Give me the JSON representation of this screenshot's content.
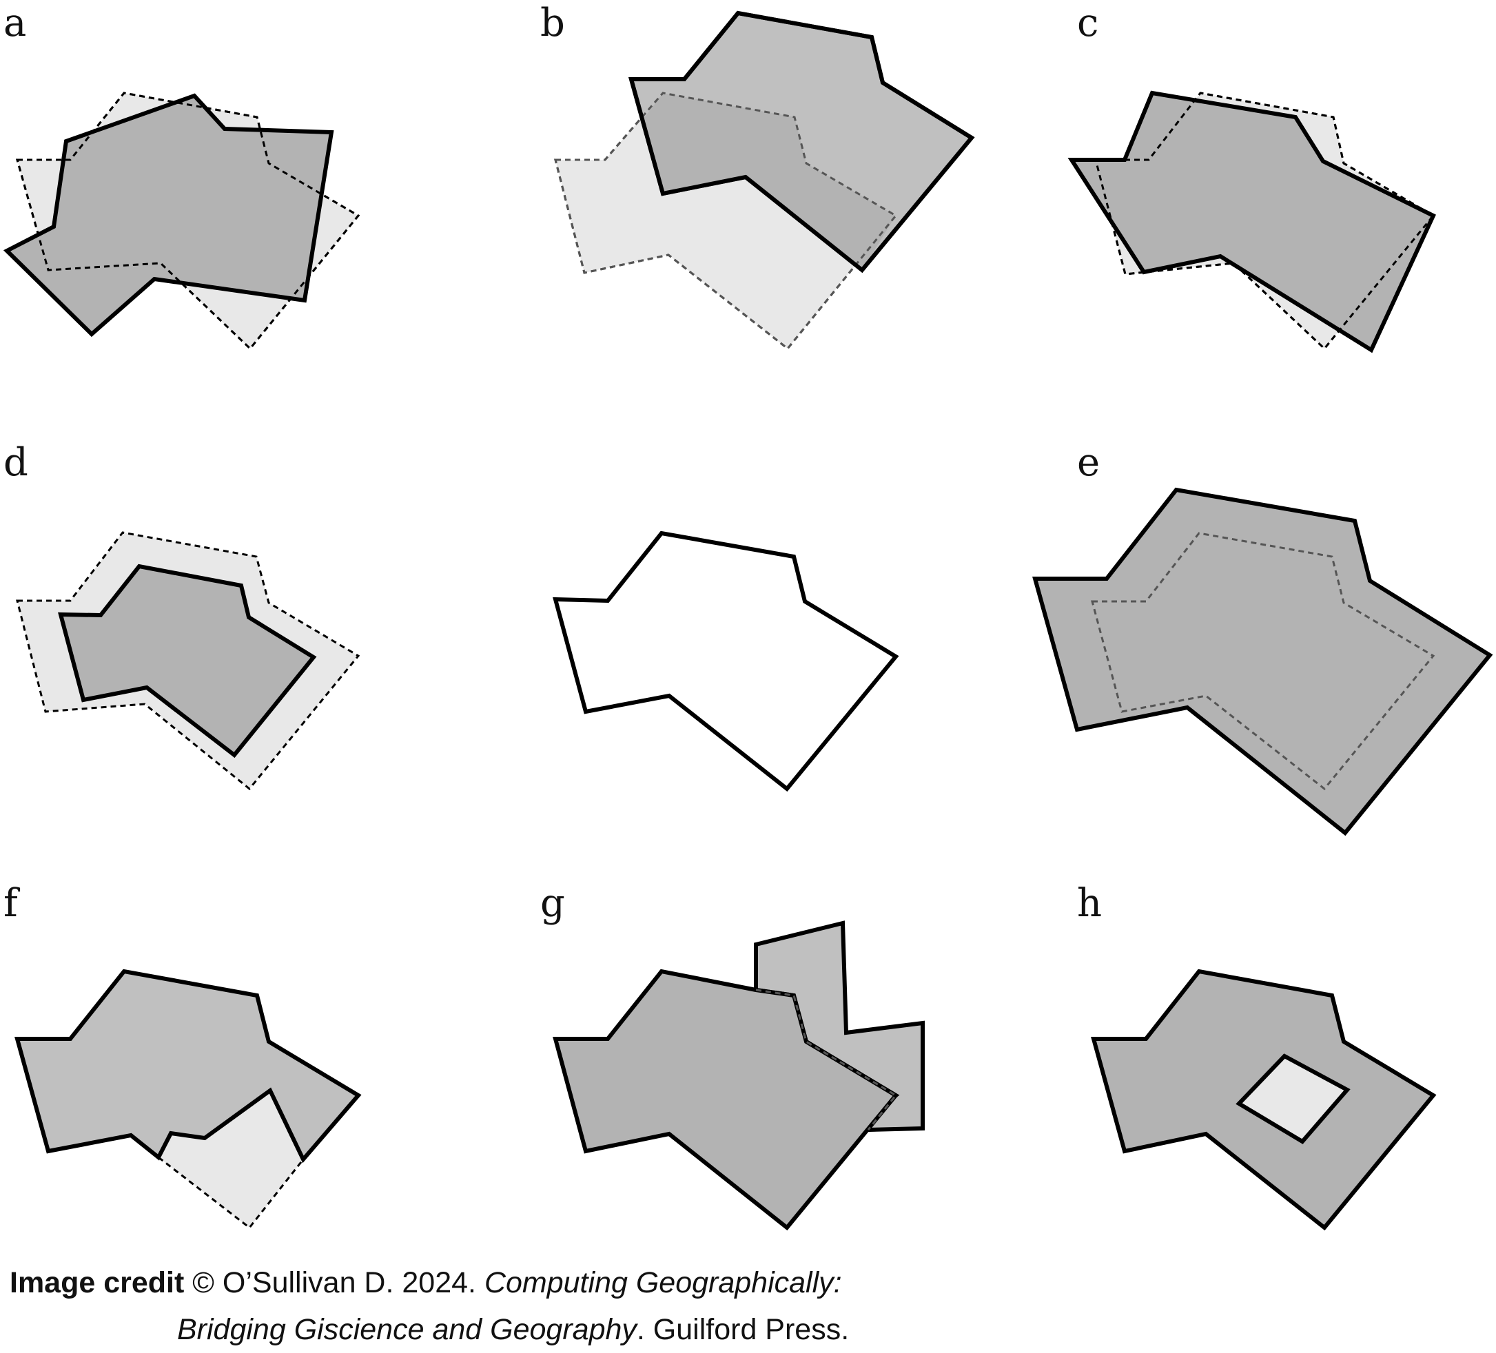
{
  "panels": [
    {
      "id": "a",
      "label": "a"
    },
    {
      "id": "b",
      "label": "b"
    },
    {
      "id": "c",
      "label": "c"
    },
    {
      "id": "d",
      "label": "d"
    },
    {
      "id": "e",
      "label": "e"
    },
    {
      "id": "f",
      "label": "f"
    },
    {
      "id": "g",
      "label": "g"
    },
    {
      "id": "h",
      "label": "h"
    }
  ],
  "colors": {
    "dark_fill": "#b3b3b3",
    "medium_fill": "#c0c0c0",
    "light_fill": "#e8e8e8",
    "outline": "#000000",
    "inner_dashed": "#555555",
    "white_fill": "#ffffff"
  },
  "credit": {
    "bold_label": "Image credit",
    "line1_plain": " © O’Sullivan D. 2024. ",
    "line1_italic": "Computing Geographically:",
    "line2_italic": "Bridging Giscience and Geography",
    "line2_plain": ". Guilford Press."
  }
}
